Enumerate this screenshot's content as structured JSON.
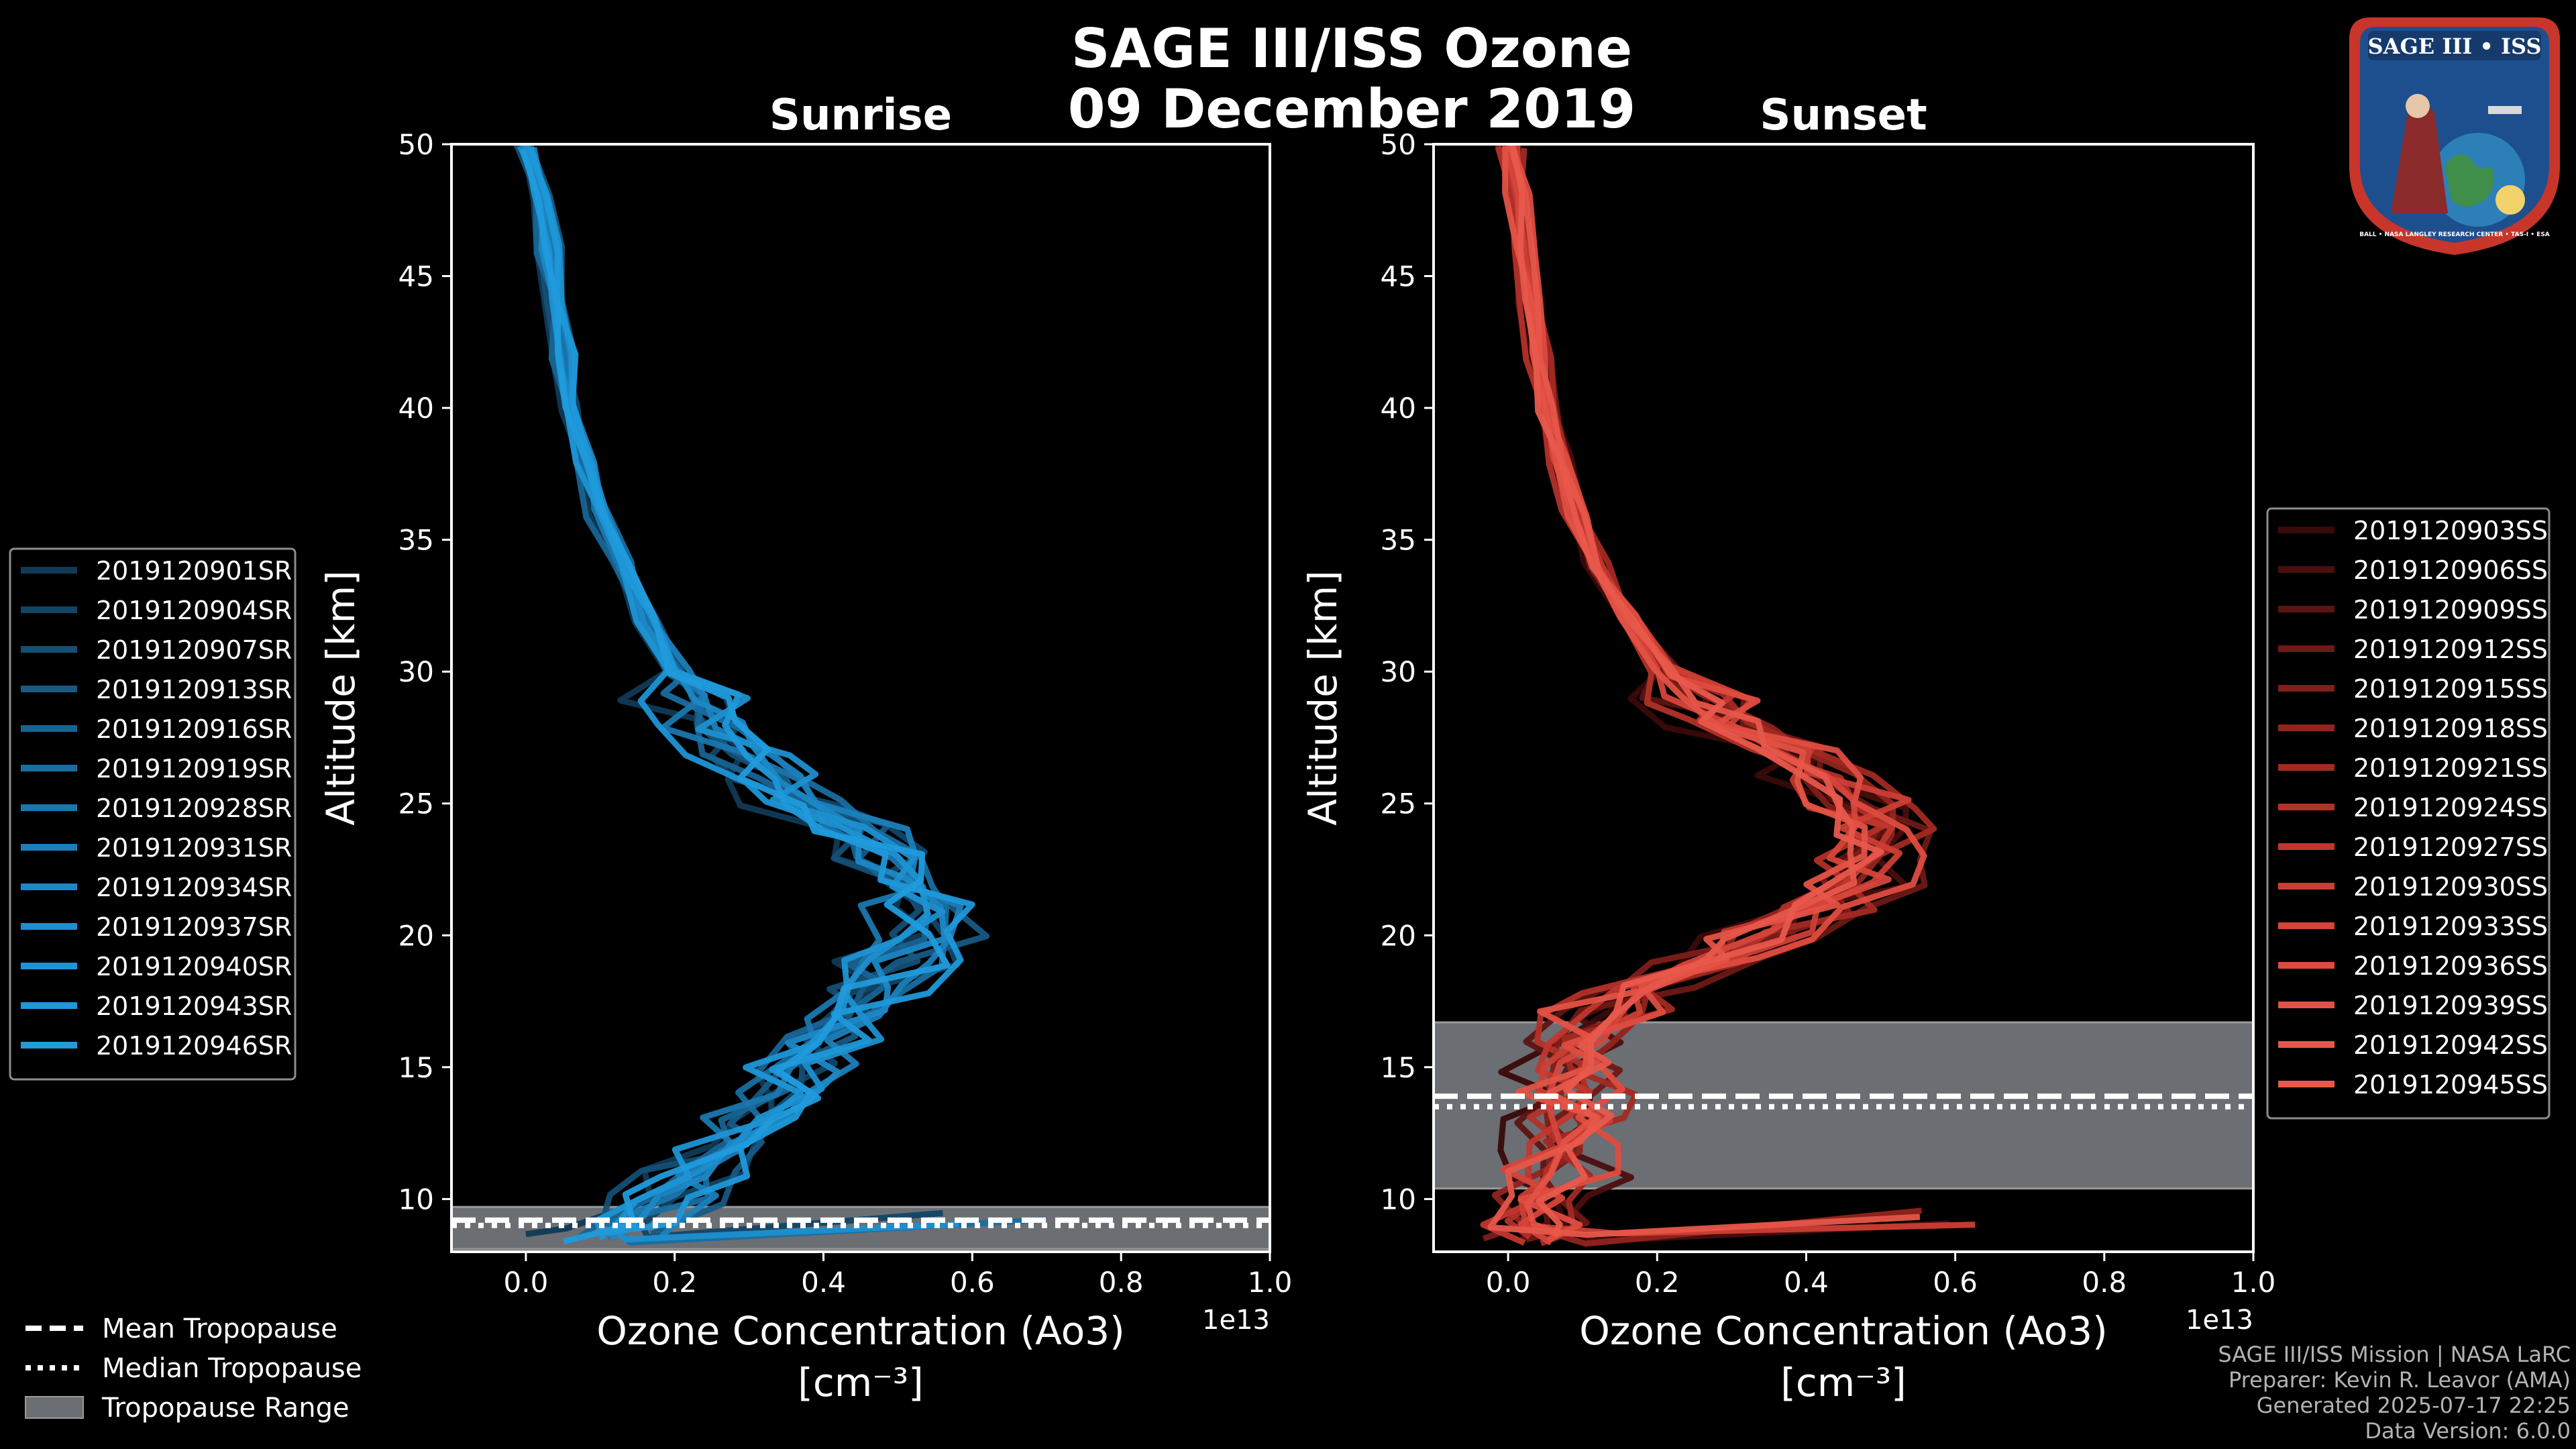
{
  "title": {
    "line1": "SAGE III/ISS Ozone",
    "line2": "09 December 2019"
  },
  "footer": [
    "SAGE III/ISS Mission | NASA LaRC",
    "Preparer: Kevin R. Leavor (AMA)",
    "Generated 2025-07-17 22:25",
    "Data Version: 6.0.0"
  ],
  "logo": {
    "top_text": "SAGE III • ISS",
    "ring_text": "BALL • NASA LANGLEY RESEARCH CENTER • TAS-I • ESA"
  },
  "tropopause_legend": [
    {
      "label": "Mean Tropopause",
      "style": "dashed"
    },
    {
      "label": "Median Tropopause",
      "style": "dotted"
    },
    {
      "label": "Tropopause Range",
      "style": "patch"
    }
  ],
  "colors": {
    "tropopause_fill": "#6b6e73",
    "sunrise": "#1f9ad6",
    "sunset": "#e8584a"
  },
  "chart_data": [
    {
      "type": "line",
      "title": "Sunrise",
      "xlabel": "Ozone Concentration (Ao3)",
      "xunit_label": "[cm⁻³]",
      "ylabel": "Altitude [km]",
      "xlim": [
        -0.1,
        1.0
      ],
      "ylim": [
        8,
        50
      ],
      "x_offset_label": "1e13",
      "xticks": [
        0.0,
        0.2,
        0.4,
        0.6,
        0.8,
        1.0
      ],
      "xtick_labels": [
        "0.0",
        "0.2",
        "0.4",
        "0.6",
        "0.8",
        "1.0"
      ],
      "yticks": [
        10,
        15,
        20,
        25,
        30,
        35,
        40,
        45,
        50
      ],
      "ytick_labels": [
        "10",
        "15",
        "20",
        "25",
        "30",
        "35",
        "40",
        "45",
        "50"
      ],
      "tropopause": {
        "range": [
          8.1,
          9.7
        ],
        "mean": 9.2,
        "median": 9.0
      },
      "base_profile": {
        "altitude": [
          8.5,
          9,
          10,
          11,
          12,
          13,
          14,
          15,
          16,
          17,
          18,
          19,
          20,
          21,
          22,
          23,
          24,
          25,
          26,
          27,
          28,
          29,
          30,
          32,
          34,
          36,
          38,
          40,
          42,
          44,
          46,
          48,
          50
        ],
        "ozone": [
          0.1,
          0.12,
          0.18,
          0.22,
          0.26,
          0.3,
          0.33,
          0.36,
          0.4,
          0.44,
          0.46,
          0.5,
          0.53,
          0.52,
          0.5,
          0.47,
          0.42,
          0.37,
          0.32,
          0.28,
          0.25,
          0.22,
          0.2,
          0.16,
          0.13,
          0.1,
          0.08,
          0.06,
          0.05,
          0.04,
          0.03,
          0.02,
          0.0
        ]
      },
      "series": [
        {
          "name": "2019120901SR",
          "color": "#103a56",
          "shift": -0.04
        },
        {
          "name": "2019120904SR",
          "color": "#124566",
          "shift": 0.02
        },
        {
          "name": "2019120907SR",
          "color": "#144f75",
          "shift": -0.02
        },
        {
          "name": "2019120913SR",
          "color": "#165a84",
          "shift": 0.03
        },
        {
          "name": "2019120916SR",
          "color": "#176493",
          "shift": -0.03
        },
        {
          "name": "2019120919SR",
          "color": "#186ea1",
          "shift": 0.01
        },
        {
          "name": "2019120928SR",
          "color": "#1a77ae",
          "shift": -0.01
        },
        {
          "name": "2019120931SR",
          "color": "#1b80ba",
          "shift": 0.04
        },
        {
          "name": "2019120934SR",
          "color": "#1c88c5",
          "shift": 0.0
        },
        {
          "name": "2019120937SR",
          "color": "#1d8fcf",
          "shift": 0.02
        },
        {
          "name": "2019120940SR",
          "color": "#1e94d5",
          "shift": -0.02
        },
        {
          "name": "2019120943SR",
          "color": "#1f98d9",
          "shift": 0.03
        },
        {
          "name": "2019120946SR",
          "color": "#209bdc",
          "shift": 0.01
        }
      ]
    },
    {
      "type": "line",
      "title": "Sunset",
      "xlabel": "Ozone Concentration (Ao3)",
      "xunit_label": "[cm⁻³]",
      "ylabel": "Altitude [km]",
      "xlim": [
        -0.1,
        1.0
      ],
      "ylim": [
        8,
        50
      ],
      "x_offset_label": "1e13",
      "xticks": [
        0.0,
        0.2,
        0.4,
        0.6,
        0.8,
        1.0
      ],
      "xtick_labels": [
        "0.0",
        "0.2",
        "0.4",
        "0.6",
        "0.8",
        "1.0"
      ],
      "yticks": [
        10,
        15,
        20,
        25,
        30,
        35,
        40,
        45,
        50
      ],
      "ytick_labels": [
        "10",
        "15",
        "20",
        "25",
        "30",
        "35",
        "40",
        "45",
        "50"
      ],
      "tropopause": {
        "range": [
          10.4,
          16.7
        ],
        "mean": 13.9,
        "median": 13.5
      },
      "base_profile": {
        "altitude": [
          8.5,
          9,
          10,
          11,
          12,
          13,
          14,
          15,
          16,
          17,
          18,
          19,
          20,
          21,
          22,
          23,
          24,
          25,
          26,
          27,
          28,
          29,
          30,
          32,
          34,
          36,
          38,
          40,
          42,
          44,
          46,
          48,
          50
        ],
        "ozone": [
          0.04,
          0.05,
          0.06,
          0.06,
          0.07,
          0.08,
          0.08,
          0.08,
          0.09,
          0.12,
          0.18,
          0.26,
          0.34,
          0.42,
          0.47,
          0.48,
          0.48,
          0.46,
          0.42,
          0.36,
          0.3,
          0.25,
          0.21,
          0.16,
          0.12,
          0.09,
          0.07,
          0.05,
          0.04,
          0.03,
          0.02,
          0.01,
          0.0
        ]
      },
      "series": [
        {
          "name": "2019120903SS",
          "color": "#3a0a0a",
          "shift": -0.03
        },
        {
          "name": "2019120906SS",
          "color": "#4a0e0e",
          "shift": 0.02
        },
        {
          "name": "2019120909SS",
          "color": "#5c1412",
          "shift": -0.01
        },
        {
          "name": "2019120912SS",
          "color": "#6e1915",
          "shift": 0.03
        },
        {
          "name": "2019120915SS",
          "color": "#801e19",
          "shift": -0.02
        },
        {
          "name": "2019120918SS",
          "color": "#91241e",
          "shift": 0.01
        },
        {
          "name": "2019120921SS",
          "color": "#a22a23",
          "shift": 0.04
        },
        {
          "name": "2019120924SS",
          "color": "#b23028",
          "shift": -0.03
        },
        {
          "name": "2019120927SS",
          "color": "#c0372e",
          "shift": 0.0
        },
        {
          "name": "2019120930SS",
          "color": "#cc3e34",
          "shift": 0.02
        },
        {
          "name": "2019120933SS",
          "color": "#d6453a",
          "shift": -0.01
        },
        {
          "name": "2019120936SS",
          "color": "#de4c40",
          "shift": 0.03
        },
        {
          "name": "2019120939SS",
          "color": "#e35245",
          "shift": -0.02
        },
        {
          "name": "2019120942SS",
          "color": "#e6564a",
          "shift": 0.01
        },
        {
          "name": "2019120945SS",
          "color": "#e8594c",
          "shift": 0.0
        }
      ]
    }
  ]
}
